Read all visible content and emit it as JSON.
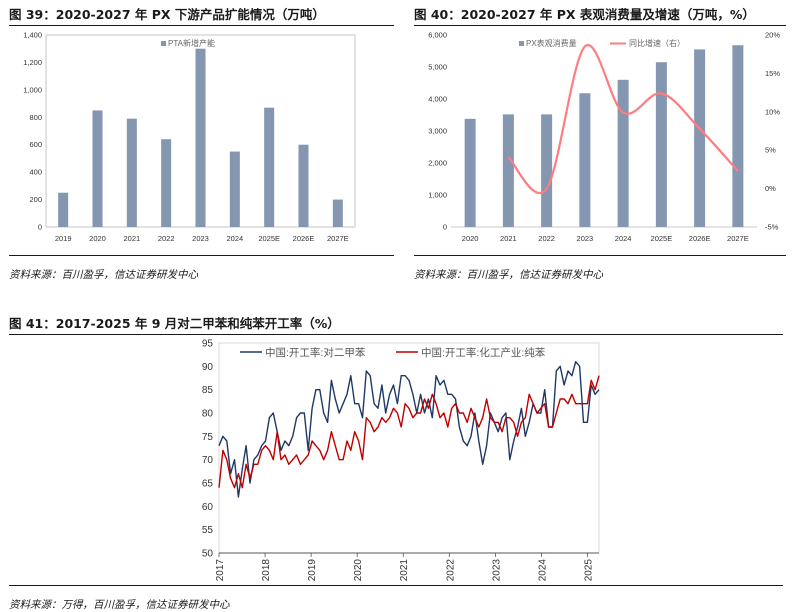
{
  "chart_data": [
    {
      "type": "bar",
      "title": "图 39：2020-2027 年 PX 下游产品扩能情况（万吨）",
      "source": "资料来源：百川盈孚，信达证券研发中心",
      "categories": [
        "2019",
        "2020",
        "2021",
        "2022",
        "2023",
        "2024",
        "2025E",
        "2026E",
        "2027E"
      ],
      "series": [
        {
          "name": "PTA新增产能",
          "values": [
            250,
            850,
            790,
            640,
            1300,
            550,
            870,
            600,
            200
          ]
        }
      ],
      "ylim": [
        0,
        1400
      ],
      "yticks": [
        "0",
        "200",
        "400",
        "600",
        "800",
        "1,000",
        "1,200",
        "1,400"
      ],
      "xlabel": "",
      "ylabel": "",
      "grid": false,
      "legend": "top",
      "colors": {
        "bar": "#8496B0"
      }
    },
    {
      "type": "bar",
      "title": "图 40：2020-2027 年 PX 表观消费量及增速（万吨，%）",
      "source": "资料来源：百川盈孚，信达证券研发中心",
      "categories": [
        "2020",
        "2021",
        "2022",
        "2023",
        "2024",
        "2025E",
        "2026E",
        "2027E"
      ],
      "series": [
        {
          "name": "PX表观消费量",
          "type": "bar",
          "axis": "left",
          "values": [
            3380,
            3520,
            3520,
            4180,
            4600,
            5150,
            5550,
            5680
          ]
        },
        {
          "name": "同比增速（右）",
          "type": "line",
          "axis": "right",
          "values": [
            null,
            4.1,
            0.0,
            18.5,
            9.9,
            12.4,
            7.8,
            2.3
          ]
        }
      ],
      "ylim_left": [
        0,
        6000
      ],
      "yticks_left": [
        "0",
        "1,000",
        "2,000",
        "3,000",
        "4,000",
        "5,000",
        "6,000"
      ],
      "ylim_right": [
        -5,
        20
      ],
      "yticks_right": [
        "-5%",
        "0%",
        "5%",
        "10%",
        "15%",
        "20%"
      ],
      "grid": false,
      "legend": "top",
      "colors": {
        "bar": "#8496B0",
        "line": "#FF7C80"
      }
    },
    {
      "type": "line",
      "title": "图 41：2017-2025 年 9 月对二甲苯和纯苯开工率（%）",
      "source": "资料来源：万得，百川盈孚，信达证券研发中心",
      "x_start": "2017-01",
      "x_end": "2025-09",
      "xticks": [
        "2017",
        "2018",
        "2019",
        "2020",
        "2021",
        "2022",
        "2023",
        "2024",
        "2025"
      ],
      "ylim": [
        50,
        95
      ],
      "yticks": [
        "50",
        "55",
        "60",
        "65",
        "70",
        "75",
        "80",
        "85",
        "90",
        "95"
      ],
      "grid": false,
      "legend": "top",
      "series": [
        {
          "name": "中国:开工率:对二甲苯",
          "color": "#1F3864",
          "values": [
            73,
            75,
            74,
            67,
            70,
            62,
            68,
            73,
            65,
            70,
            71,
            73,
            74,
            79,
            80,
            76,
            72,
            74,
            73,
            75,
            79,
            80,
            80,
            72,
            81,
            85,
            85,
            80,
            78,
            87,
            83,
            80,
            82,
            84,
            88,
            82,
            82,
            79,
            89,
            88,
            82,
            81,
            86,
            80,
            84,
            86,
            82,
            88,
            88,
            87,
            84,
            80,
            84,
            80,
            83,
            79,
            88,
            86,
            87,
            84,
            84,
            83,
            77,
            74,
            73,
            75,
            80,
            74,
            69,
            73,
            80,
            78,
            76,
            79,
            80,
            70,
            74,
            77,
            81,
            75,
            78,
            82,
            80,
            80,
            85,
            77,
            77,
            89,
            90,
            86,
            89,
            88,
            91,
            90,
            78,
            78,
            86,
            84,
            85
          ]
        },
        {
          "name": "中国:开工率:化工产业:纯苯",
          "color": "#C00000",
          "values": [
            64,
            72,
            70,
            66,
            64,
            67,
            64,
            69,
            66,
            69,
            69,
            72,
            73,
            72,
            70,
            76,
            70,
            71,
            69,
            70,
            71,
            69,
            70,
            71,
            74,
            73,
            72,
            70,
            72,
            76,
            73,
            70,
            70,
            74,
            72,
            76,
            74,
            70,
            79,
            78,
            76,
            77,
            79,
            78,
            79,
            81,
            80,
            77,
            82,
            81,
            79,
            80,
            80,
            83,
            81,
            84,
            82,
            79,
            80,
            77,
            81,
            82,
            80,
            80,
            78,
            81,
            79,
            77,
            79,
            83,
            79,
            78,
            78,
            76,
            79,
            79,
            78,
            75,
            78,
            79,
            84,
            82,
            80,
            81,
            82,
            77,
            77,
            80,
            83,
            83,
            82,
            84,
            82,
            82,
            82,
            82,
            87,
            85,
            88
          ]
        }
      ]
    }
  ]
}
